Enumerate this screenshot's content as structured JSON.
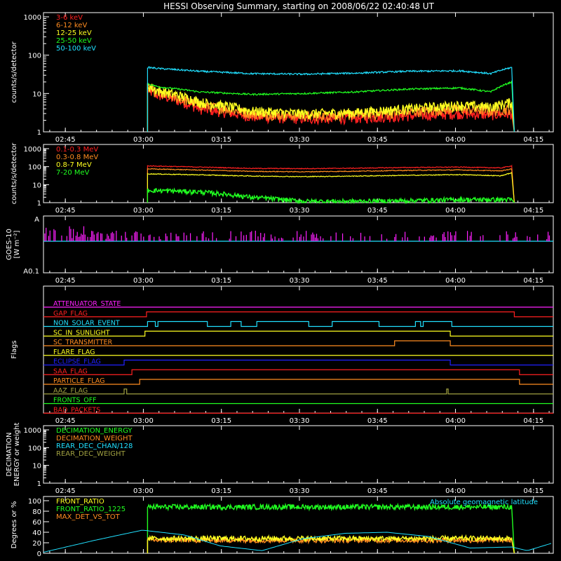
{
  "title": "HESSI Observing Summary, starting on 2008/06/22 02:40:48 UT",
  "colors": {
    "bg": "#000000",
    "fg": "#ffffff",
    "red": "#ff2020",
    "orange": "#ff8c20",
    "yellow": "#ffff20",
    "green": "#20ff20",
    "cyan": "#20e0ff",
    "magenta": "#ff20ff",
    "blue": "#2020ff",
    "olive": "#a0a040",
    "gray": "#808080"
  },
  "time_ticks": [
    "02:45",
    "03:00",
    "03:15",
    "03:30",
    "03:45",
    "04:00",
    "04:15"
  ],
  "time_ticks_min": [
    4.2,
    19.2,
    34.2,
    49.2,
    64.2,
    79.2,
    94.2
  ],
  "time_range_min": [
    0,
    98
  ],
  "chart_data": [
    {
      "name": "low-energy",
      "type": "line",
      "ylabel": "counts/s/detector",
      "yscale": "log",
      "ylim": [
        1,
        1000
      ],
      "ytick_labels": [
        "1",
        "10",
        "100",
        "1000"
      ],
      "legend": [
        {
          "label": "3-6 keV",
          "color": "red"
        },
        {
          "label": "6-12 keV",
          "color": "orange"
        },
        {
          "label": "12-25 keV",
          "color": "yellow"
        },
        {
          "label": "25-50 keV",
          "color": "green"
        },
        {
          "label": "50-100 keV",
          "color": "cyan"
        }
      ],
      "series": [
        {
          "name": "3-6 keV",
          "color": "red",
          "noisy": true,
          "x": [
            20,
            22,
            30,
            40,
            50,
            60,
            70,
            80,
            86,
            90,
            90.5
          ],
          "y": [
            12,
            9,
            4,
            2.5,
            2.2,
            2.3,
            2.6,
            3,
            2.8,
            3,
            1
          ]
        },
        {
          "name": "6-12 keV",
          "color": "orange",
          "noisy": true,
          "x": [
            20,
            22,
            30,
            40,
            50,
            60,
            70,
            80,
            86,
            90,
            90.5
          ],
          "y": [
            14,
            10,
            5,
            3,
            2.6,
            2.8,
            3.3,
            4,
            3.5,
            4,
            1
          ]
        },
        {
          "name": "12-25 keV",
          "color": "yellow",
          "noisy": true,
          "x": [
            20,
            22,
            30,
            40,
            50,
            60,
            70,
            80,
            86,
            90,
            90.5
          ],
          "y": [
            16,
            12,
            6,
            3.5,
            3,
            3.2,
            4,
            5,
            4.5,
            6,
            1
          ]
        },
        {
          "name": "25-50 keV",
          "color": "green",
          "noisy": false,
          "x": [
            20,
            22,
            30,
            40,
            50,
            60,
            70,
            80,
            86,
            90,
            90.5
          ],
          "y": [
            18,
            15,
            11,
            9.5,
            10,
            11,
            13,
            14,
            11,
            20,
            1
          ]
        },
        {
          "name": "50-100 keV",
          "color": "cyan",
          "noisy": false,
          "x": [
            20,
            22,
            30,
            40,
            50,
            60,
            70,
            80,
            86,
            90,
            90.5
          ],
          "y": [
            48,
            45,
            38,
            33,
            32,
            34,
            38,
            39,
            33,
            48,
            1
          ]
        }
      ]
    },
    {
      "name": "high-energy",
      "type": "line",
      "ylabel": "counts/s/detector",
      "yscale": "log",
      "ylim": [
        1,
        1000
      ],
      "ytick_labels": [
        "1",
        "10",
        "100",
        "1000"
      ],
      "legend": [
        {
          "label": "0.1-0.3 MeV",
          "color": "red"
        },
        {
          "label": "0.3-0.8 MeV",
          "color": "orange"
        },
        {
          "label": "0.8-7 MeV",
          "color": "yellow"
        },
        {
          "label": "7-20 MeV",
          "color": "green"
        }
      ],
      "series": [
        {
          "name": "0.1-0.3 MeV",
          "color": "red",
          "noisy": false,
          "x": [
            20,
            30,
            40,
            50,
            60,
            70,
            80,
            88,
            90,
            90.5
          ],
          "y": [
            110,
            95,
            80,
            78,
            82,
            90,
            95,
            85,
            110,
            1
          ]
        },
        {
          "name": "0.3-0.8 MeV",
          "color": "orange",
          "noisy": false,
          "x": [
            20,
            30,
            40,
            50,
            60,
            70,
            80,
            88,
            90,
            90.5
          ],
          "y": [
            75,
            65,
            55,
            52,
            56,
            62,
            66,
            58,
            75,
            1
          ]
        },
        {
          "name": "0.8-7 MeV",
          "color": "yellow",
          "noisy": false,
          "x": [
            20,
            30,
            40,
            50,
            60,
            70,
            80,
            88,
            90,
            90.5
          ],
          "y": [
            40,
            35,
            30,
            28,
            30,
            33,
            36,
            31,
            45,
            1
          ]
        },
        {
          "name": "7-20 MeV",
          "color": "green",
          "noisy": true,
          "x": [
            20,
            30,
            40,
            50,
            60,
            70,
            80,
            88,
            90,
            90.5
          ],
          "y": [
            5,
            4,
            2,
            1.2,
            1.2,
            1.3,
            1.5,
            1.5,
            1.5,
            1
          ]
        }
      ]
    },
    {
      "name": "goes",
      "type": "line",
      "ylabel": "GOES-10 [W m⁻²]",
      "ytick_labels": [
        "A",
        "A0.1"
      ],
      "series": [
        {
          "name": "goes-flux",
          "color": "magenta",
          "level": 0.7
        },
        {
          "name": "goes-threshold",
          "color": "cyan",
          "level": 0.6
        }
      ]
    },
    {
      "name": "flags",
      "type": "line",
      "ylabel": "Flags",
      "flags": [
        {
          "label": "ATTENUATOR_STATE",
          "color": "magenta",
          "steps": []
        },
        {
          "label": "GAP_FLAG",
          "color": "red",
          "steps": [
            [
              19.8,
              90.5
            ]
          ]
        },
        {
          "label": "NON_SOLAR_EVENT",
          "color": "cyan",
          "steps": [
            [
              20,
              21.5
            ],
            [
              22,
              31.5
            ],
            [
              36,
              38
            ],
            [
              41,
              51
            ],
            [
              55.5,
              64.5
            ],
            [
              71.5,
              72.5
            ],
            [
              73,
              78.5
            ]
          ]
        },
        {
          "label": "SC_IN_SUNLIGHT",
          "color": "yellow",
          "steps": [
            [
              19.5,
              78.2
            ]
          ]
        },
        {
          "label": "SC_TRANSMITTER",
          "color": "orange",
          "steps": [
            [
              67.5,
              78.2
            ]
          ]
        },
        {
          "label": "FLARE_FLAG",
          "color": "yellow",
          "steps": []
        },
        {
          "label": "ECLIPSE_FLAG",
          "color": "blue",
          "steps": [
            [
              15.5,
              78.2
            ]
          ]
        },
        {
          "label": "SAA_FLAG",
          "color": "red",
          "steps": [
            [
              17.0,
              91.5
            ]
          ]
        },
        {
          "label": "PARTICLE_FLAG",
          "color": "orange",
          "steps": [
            [
              18.5,
              91.5
            ]
          ]
        },
        {
          "label": "AAZ_FLAG",
          "color": "olive",
          "steps": [
            [
              15.5,
              16.0
            ],
            [
              77.5,
              77.8
            ]
          ]
        },
        {
          "label": "FRONTS_OFF",
          "color": "green",
          "steps": []
        },
        {
          "label": "BAD_PACKETS",
          "color": "red",
          "steps": []
        }
      ]
    },
    {
      "name": "decimation",
      "type": "line",
      "ylabel": "DECIMATION ENERGY or weight",
      "yscale": "log",
      "ylim": [
        1,
        1000
      ],
      "ytick_labels": [
        "1",
        "10",
        "100",
        "1000"
      ],
      "legend": [
        {
          "label": "DECIMATION_ENERGY",
          "color": "green"
        },
        {
          "label": "DECIMATION_WEIGHT",
          "color": "orange"
        },
        {
          "label": "REAR_DEC_CHAN/128",
          "color": "cyan"
        },
        {
          "label": "REAR_DEC_WEIGHT",
          "color": "olive"
        }
      ],
      "series": []
    },
    {
      "name": "ratio",
      "type": "line",
      "ylabel": "Degrees or %",
      "yscale": "linear",
      "ylim": [
        0,
        100
      ],
      "ytick_labels": [
        "0",
        "20",
        "40",
        "60",
        "80",
        "100"
      ],
      "ytick_values": [
        0,
        20,
        40,
        60,
        80,
        100
      ],
      "legend": [
        {
          "label": "FRONT_RATIO",
          "color": "yellow"
        },
        {
          "label": "FRONT_RATIO_1225",
          "color": "green"
        },
        {
          "label": "MAX_DET_VS_TOT",
          "color": "orange"
        }
      ],
      "annotation": {
        "label": "Absolute geomagnetic latitude",
        "color": "cyan"
      },
      "series": [
        {
          "name": "FRONT_RATIO_1225",
          "color": "green",
          "noisy": true,
          "x": [
            20,
            90,
            90.5
          ],
          "y": [
            88,
            88,
            0
          ]
        },
        {
          "name": "MAX_DET_VS_TOT",
          "color": "orange",
          "noisy": true,
          "x": [
            20,
            90,
            90.5
          ],
          "y": [
            25,
            25,
            0
          ]
        },
        {
          "name": "FRONT_RATIO",
          "color": "yellow",
          "noisy": true,
          "x": [
            20,
            90,
            90.5
          ],
          "y": [
            28,
            28,
            0
          ]
        },
        {
          "name": "Absolute geomagnetic latitude",
          "color": "cyan",
          "noisy": false,
          "x": [
            0,
            10,
            19,
            27,
            34,
            42,
            50,
            58,
            66,
            74,
            82,
            90,
            93,
            98
          ],
          "y": [
            2,
            25,
            44,
            35,
            14,
            5,
            28,
            38,
            40,
            32,
            10,
            12,
            5,
            20
          ]
        }
      ]
    }
  ]
}
